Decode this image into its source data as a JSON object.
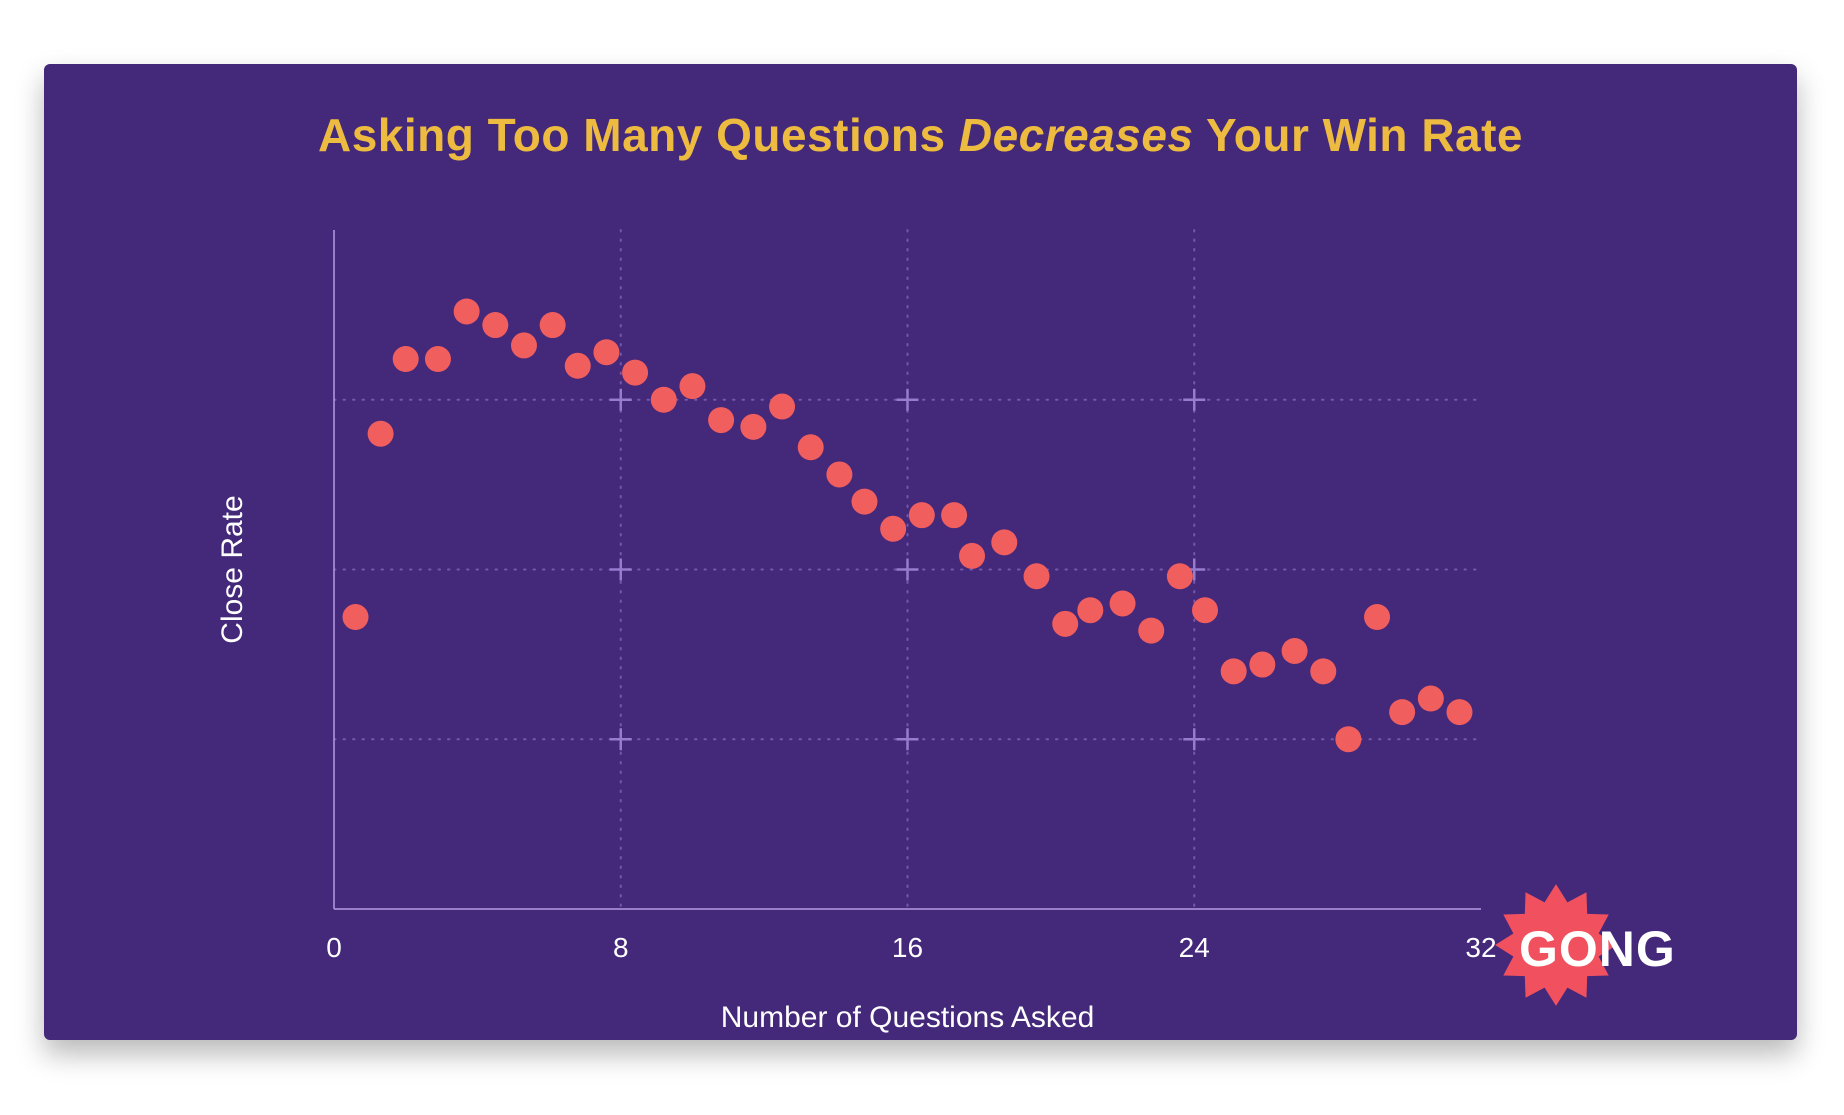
{
  "title": {
    "prefix": "Asking Too Many Questions ",
    "emphasis": "Decreases",
    "suffix": " Your Win Rate"
  },
  "colors": {
    "page_background": "#ffffff",
    "card_background": "#44287a",
    "title_text": "#ecbb3f",
    "axis": "#a78fd8",
    "grid": "#9a7fd2",
    "tick_text": "#ffffff",
    "point": "#f15e5e",
    "logo_burst": "#f1515e",
    "logo_text": "#ffffff"
  },
  "chart_data": {
    "type": "scatter",
    "title": "Asking Too Many Questions Decreases Your Win Rate",
    "xlabel": "Number of Questions Asked",
    "ylabel": "Close Rate",
    "xlim": [
      0,
      32
    ],
    "ylim": [
      0,
      100
    ],
    "x_ticks": [
      0,
      8,
      16,
      24,
      32
    ],
    "y_ticks": [],
    "grid": {
      "x": [
        8,
        16,
        24
      ],
      "y": [
        25,
        50,
        75
      ],
      "style": "dotted-with-cross-markers"
    },
    "legend": "none",
    "note": "y axis shows no numeric labels; point y-values are relative close-rate scale 0-100",
    "points": [
      [
        0.6,
        43
      ],
      [
        1.3,
        70
      ],
      [
        2.0,
        81
      ],
      [
        2.9,
        81
      ],
      [
        3.7,
        88
      ],
      [
        4.5,
        86
      ],
      [
        5.3,
        83
      ],
      [
        6.1,
        86
      ],
      [
        6.8,
        80
      ],
      [
        7.6,
        82
      ],
      [
        8.4,
        79
      ],
      [
        9.2,
        75
      ],
      [
        10.0,
        77
      ],
      [
        10.8,
        72
      ],
      [
        11.7,
        71
      ],
      [
        12.5,
        74
      ],
      [
        13.3,
        68
      ],
      [
        14.1,
        64
      ],
      [
        14.8,
        60
      ],
      [
        15.6,
        56
      ],
      [
        16.4,
        58
      ],
      [
        17.3,
        58
      ],
      [
        17.8,
        52
      ],
      [
        18.7,
        54
      ],
      [
        19.6,
        49
      ],
      [
        20.4,
        42
      ],
      [
        21.1,
        44
      ],
      [
        22.0,
        45
      ],
      [
        22.8,
        41
      ],
      [
        23.6,
        49
      ],
      [
        24.3,
        44
      ],
      [
        25.1,
        35
      ],
      [
        25.9,
        36
      ],
      [
        26.8,
        38
      ],
      [
        27.6,
        35
      ],
      [
        28.3,
        25
      ],
      [
        29.1,
        43
      ],
      [
        29.8,
        29
      ],
      [
        30.6,
        31
      ],
      [
        31.4,
        29
      ]
    ]
  },
  "logo": {
    "text": "GONG"
  }
}
